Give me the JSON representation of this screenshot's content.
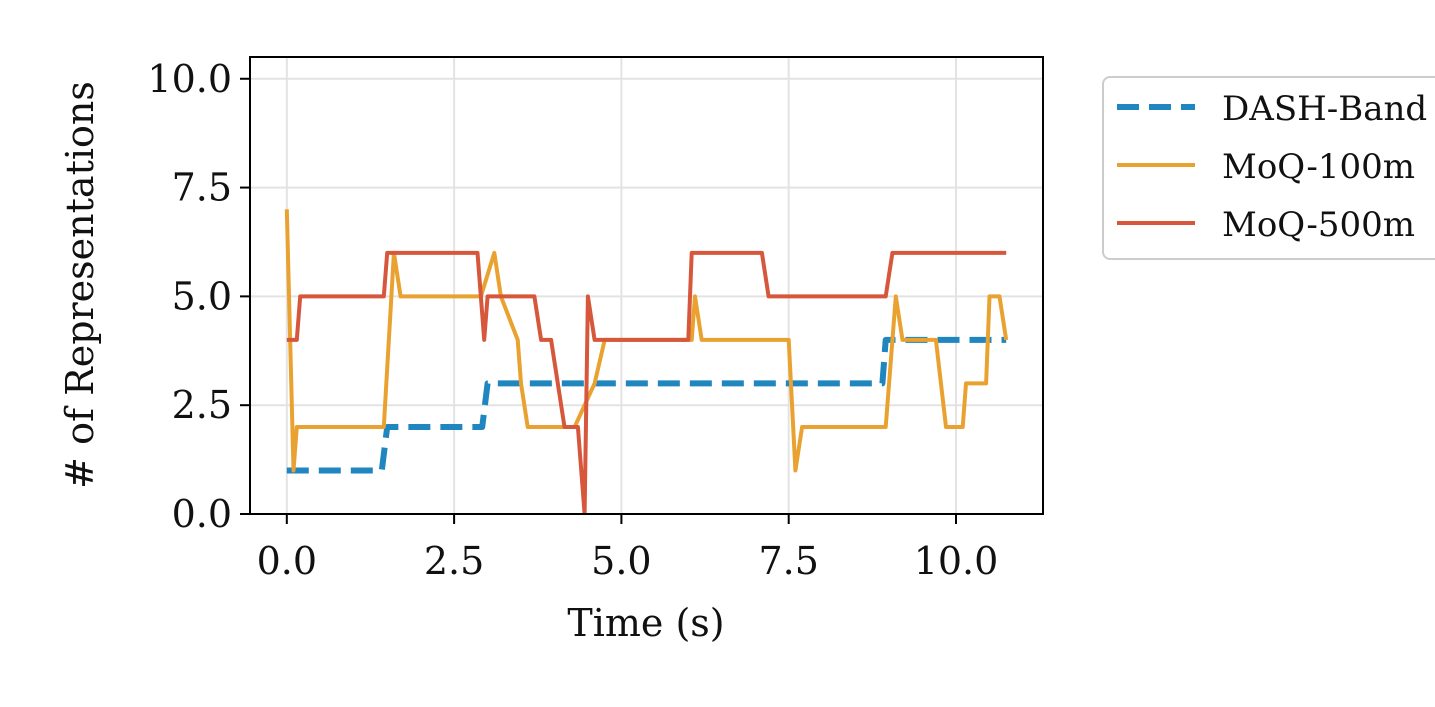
{
  "chart_data": {
    "type": "line",
    "title": "",
    "xlabel": "Time (s)",
    "ylabel": "# of Representations",
    "xlim": [
      -0.55,
      11.3
    ],
    "ylim": [
      0.0,
      10.5
    ],
    "xticks": [
      "0.0",
      "2.5",
      "5.0",
      "7.5",
      "10.0"
    ],
    "yticks": [
      "0.0",
      "2.5",
      "5.0",
      "7.5",
      "10.0"
    ],
    "xtick_values": [
      0,
      2.5,
      5.0,
      7.5,
      10.0
    ],
    "ytick_values": [
      0,
      2.5,
      5.0,
      7.5,
      10.0
    ],
    "grid": true,
    "legend_position": "outside-top-right",
    "series": [
      {
        "name": "DASH-Band",
        "color": "#1f86bf",
        "style": "dashed",
        "points": [
          [
            0.0,
            1
          ],
          [
            1.42,
            1
          ],
          [
            1.5,
            2
          ],
          [
            2.92,
            2
          ],
          [
            3.0,
            3
          ],
          [
            8.9,
            3
          ],
          [
            8.95,
            4
          ],
          [
            10.75,
            4
          ]
        ]
      },
      {
        "name": "MoQ-100m",
        "color": "#e9a230",
        "style": "solid",
        "points": [
          [
            0.0,
            7
          ],
          [
            0.1,
            1
          ],
          [
            0.15,
            2
          ],
          [
            1.45,
            2
          ],
          [
            1.6,
            6
          ],
          [
            1.7,
            5
          ],
          [
            2.9,
            5
          ],
          [
            3.1,
            6
          ],
          [
            3.2,
            5
          ],
          [
            3.45,
            4
          ],
          [
            3.5,
            3
          ],
          [
            3.6,
            2
          ],
          [
            4.1,
            2
          ],
          [
            4.3,
            2
          ],
          [
            4.6,
            3
          ],
          [
            4.75,
            4
          ],
          [
            6.05,
            4
          ],
          [
            6.1,
            5
          ],
          [
            6.2,
            4
          ],
          [
            7.5,
            4
          ],
          [
            7.6,
            1
          ],
          [
            7.7,
            2
          ],
          [
            8.95,
            2
          ],
          [
            9.1,
            5
          ],
          [
            9.2,
            4
          ],
          [
            9.7,
            4
          ],
          [
            9.85,
            2
          ],
          [
            10.1,
            2
          ],
          [
            10.15,
            3
          ],
          [
            10.45,
            3
          ],
          [
            10.5,
            5
          ],
          [
            10.65,
            5
          ],
          [
            10.75,
            4
          ]
        ]
      },
      {
        "name": "MoQ-500m",
        "color": "#d6573c",
        "style": "solid",
        "points": [
          [
            0.0,
            4
          ],
          [
            0.15,
            4
          ],
          [
            0.2,
            5
          ],
          [
            1.45,
            5
          ],
          [
            1.5,
            6
          ],
          [
            2.85,
            6
          ],
          [
            2.95,
            4
          ],
          [
            3.0,
            5
          ],
          [
            3.7,
            5
          ],
          [
            3.8,
            4
          ],
          [
            3.95,
            4
          ],
          [
            4.05,
            3
          ],
          [
            4.15,
            2
          ],
          [
            4.35,
            2
          ],
          [
            4.45,
            0
          ],
          [
            4.5,
            5
          ],
          [
            4.6,
            4
          ],
          [
            6.0,
            4
          ],
          [
            6.05,
            6
          ],
          [
            7.1,
            6
          ],
          [
            7.2,
            5
          ],
          [
            8.95,
            5
          ],
          [
            9.05,
            6
          ],
          [
            10.75,
            6
          ]
        ]
      }
    ]
  }
}
